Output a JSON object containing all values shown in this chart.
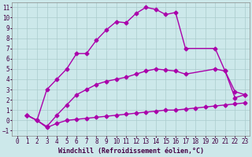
{
  "background_color": "#cce8ea",
  "grid_color": "#aacccc",
  "line_color": "#aa00aa",
  "marker": "D",
  "markersize": 2.5,
  "linewidth": 1.0,
  "xlabel": "Windchill (Refroidissement éolien,°C)",
  "xlabel_fontsize": 6,
  "tick_fontsize": 5.5,
  "xlim": [
    -0.5,
    23.5
  ],
  "ylim": [
    -1.5,
    11.5
  ],
  "yticks": [
    -1,
    0,
    1,
    2,
    3,
    4,
    5,
    6,
    7,
    8,
    9,
    10,
    11
  ],
  "xticks": [
    0,
    1,
    2,
    3,
    4,
    5,
    6,
    7,
    8,
    9,
    10,
    11,
    12,
    13,
    14,
    15,
    16,
    17,
    18,
    19,
    20,
    21,
    22,
    23
  ],
  "line1_x": [
    1,
    2,
    3,
    4,
    5,
    6,
    7,
    8,
    9,
    10,
    11,
    12,
    13,
    14,
    15,
    16,
    17,
    20,
    21,
    22,
    23
  ],
  "line1_y": [
    0.5,
    0.0,
    3.0,
    4.0,
    5.0,
    6.5,
    6.5,
    7.8,
    8.8,
    9.6,
    9.5,
    10.4,
    11.0,
    10.8,
    10.3,
    10.5,
    7.0,
    7.0,
    4.8,
    2.2,
    2.5
  ],
  "line2_x": [
    1,
    2,
    3,
    4,
    5,
    6,
    7,
    8,
    9,
    10,
    11,
    12,
    13,
    14,
    15,
    16,
    17,
    20,
    21,
    22,
    23
  ],
  "line2_y": [
    0.5,
    0.0,
    -0.6,
    0.5,
    1.5,
    2.5,
    3.0,
    3.5,
    3.8,
    4.0,
    4.2,
    4.5,
    4.8,
    5.0,
    4.9,
    4.8,
    4.5,
    5.0,
    4.8,
    2.8,
    2.5
  ],
  "line3_x": [
    1,
    2,
    3,
    4,
    5,
    6,
    7,
    8,
    9,
    10,
    11,
    12,
    13,
    14,
    15,
    16,
    17,
    18,
    19,
    20,
    21,
    22,
    23
  ],
  "line3_y": [
    0.5,
    0.0,
    -0.7,
    -0.3,
    0.0,
    0.1,
    0.2,
    0.3,
    0.4,
    0.5,
    0.6,
    0.7,
    0.8,
    0.9,
    1.0,
    1.0,
    1.1,
    1.2,
    1.3,
    1.4,
    1.5,
    1.6,
    1.7
  ]
}
